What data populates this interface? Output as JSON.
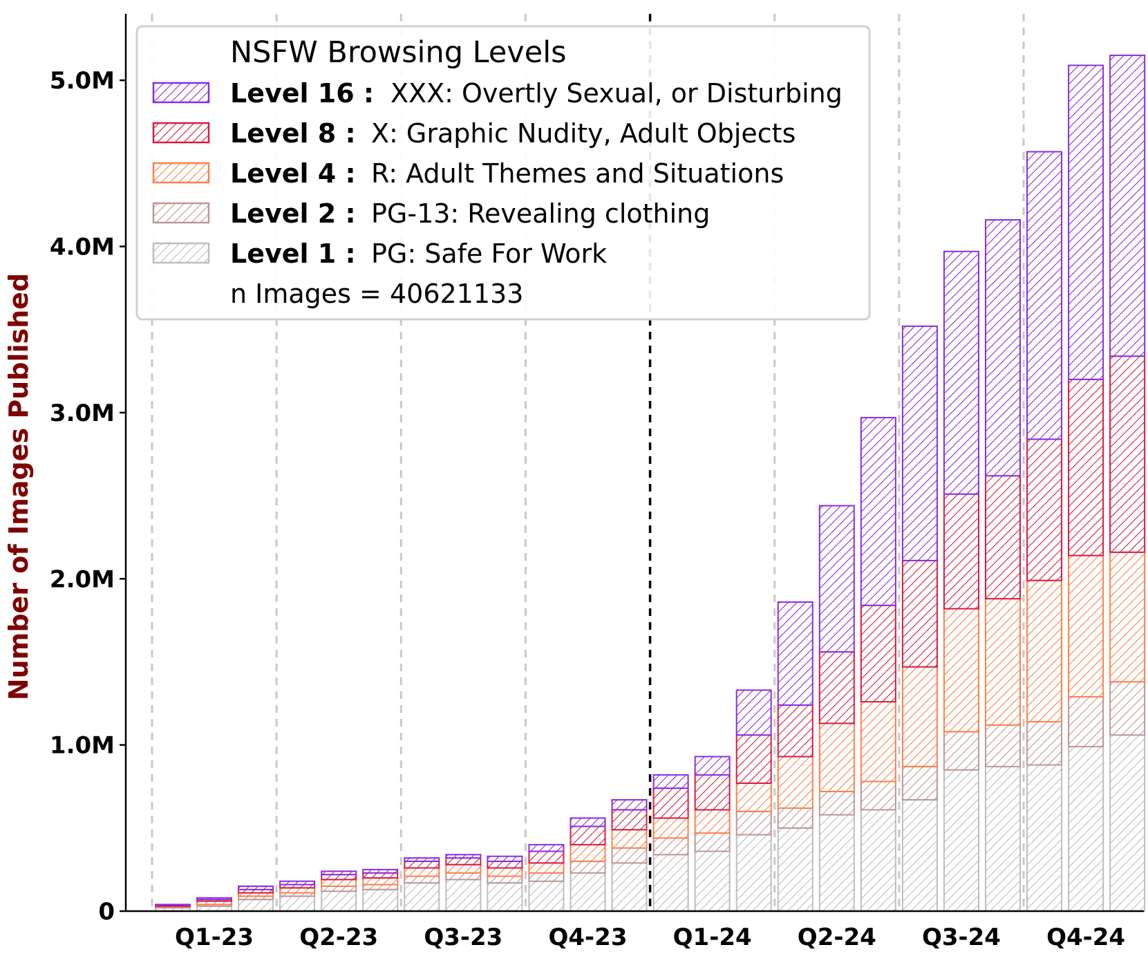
{
  "chart_data": {
    "type": "bar",
    "stacked": true,
    "title": "",
    "xlabel": "",
    "ylabel": "Number of Images Published",
    "ylim": [
      0,
      5.4
    ],
    "y_unit": "M",
    "yticks": [
      {
        "value": 0,
        "label": "0"
      },
      {
        "value": 1,
        "label": "1.0M"
      },
      {
        "value": 2,
        "label": "2.0M"
      },
      {
        "value": 3,
        "label": "3.0M"
      },
      {
        "value": 4,
        "label": "4.0M"
      },
      {
        "value": 5,
        "label": "5.0M"
      }
    ],
    "quarter_labels": [
      "Q1-23",
      "Q2-23",
      "Q3-23",
      "Q4-23",
      "Q1-24",
      "Q2-24",
      "Q3-24",
      "Q4-24"
    ],
    "bars_per_quarter": 3,
    "highlight_divider_after_quarter": 4,
    "grid": "vertical dashed quarter separators",
    "legend": {
      "title": "NSFW Browsing Levels",
      "placement": "top-left",
      "footer": "n Images = 40621133"
    },
    "series": [
      {
        "name": "Level 1",
        "key": "Level 1 :",
        "description": "PG: Safe For Work",
        "color": "#bdbdbd",
        "values": [
          0.02,
          0.03,
          0.07,
          0.09,
          0.12,
          0.13,
          0.17,
          0.19,
          0.17,
          0.18,
          0.23,
          0.29,
          0.34,
          0.36,
          0.46,
          0.5,
          0.58,
          0.61,
          0.67,
          0.85,
          0.87,
          0.88,
          0.99,
          1.06
        ]
      },
      {
        "name": "Level 2",
        "key": "Level 2 :",
        "description": "PG-13: Revealing clothing",
        "color": "#c09595",
        "values": [
          0.005,
          0.01,
          0.02,
          0.02,
          0.03,
          0.03,
          0.04,
          0.04,
          0.04,
          0.05,
          0.07,
          0.09,
          0.1,
          0.11,
          0.14,
          0.12,
          0.14,
          0.17,
          0.2,
          0.23,
          0.25,
          0.26,
          0.3,
          0.32
        ]
      },
      {
        "name": "Level 4",
        "key": "Level 4 :",
        "description": "R: Adult Themes and Situations",
        "color": "#ff7f4a",
        "values": [
          0.005,
          0.02,
          0.02,
          0.03,
          0.04,
          0.04,
          0.05,
          0.05,
          0.05,
          0.06,
          0.1,
          0.11,
          0.12,
          0.14,
          0.17,
          0.31,
          0.41,
          0.48,
          0.6,
          0.74,
          0.76,
          0.85,
          0.85,
          0.78
        ]
      },
      {
        "name": "Level 8",
        "key": "Level 8 :",
        "description": "X: Graphic Nudity, Adult Objects",
        "color": "#d81b3e",
        "values": [
          0.005,
          0.01,
          0.02,
          0.02,
          0.03,
          0.03,
          0.04,
          0.04,
          0.04,
          0.07,
          0.11,
          0.12,
          0.18,
          0.21,
          0.29,
          0.31,
          0.43,
          0.58,
          0.64,
          0.69,
          0.74,
          0.85,
          1.06,
          1.18
        ]
      },
      {
        "name": "Level 16",
        "key": "Level 16 :",
        "description": "XXX: Overtly Sexual, or Disturbing",
        "color": "#8a2be2",
        "values": [
          0.005,
          0.01,
          0.02,
          0.02,
          0.02,
          0.02,
          0.02,
          0.02,
          0.03,
          0.04,
          0.05,
          0.06,
          0.08,
          0.11,
          0.27,
          0.62,
          0.88,
          1.13,
          1.41,
          1.46,
          1.54,
          1.73,
          1.89,
          1.81
        ]
      }
    ]
  }
}
